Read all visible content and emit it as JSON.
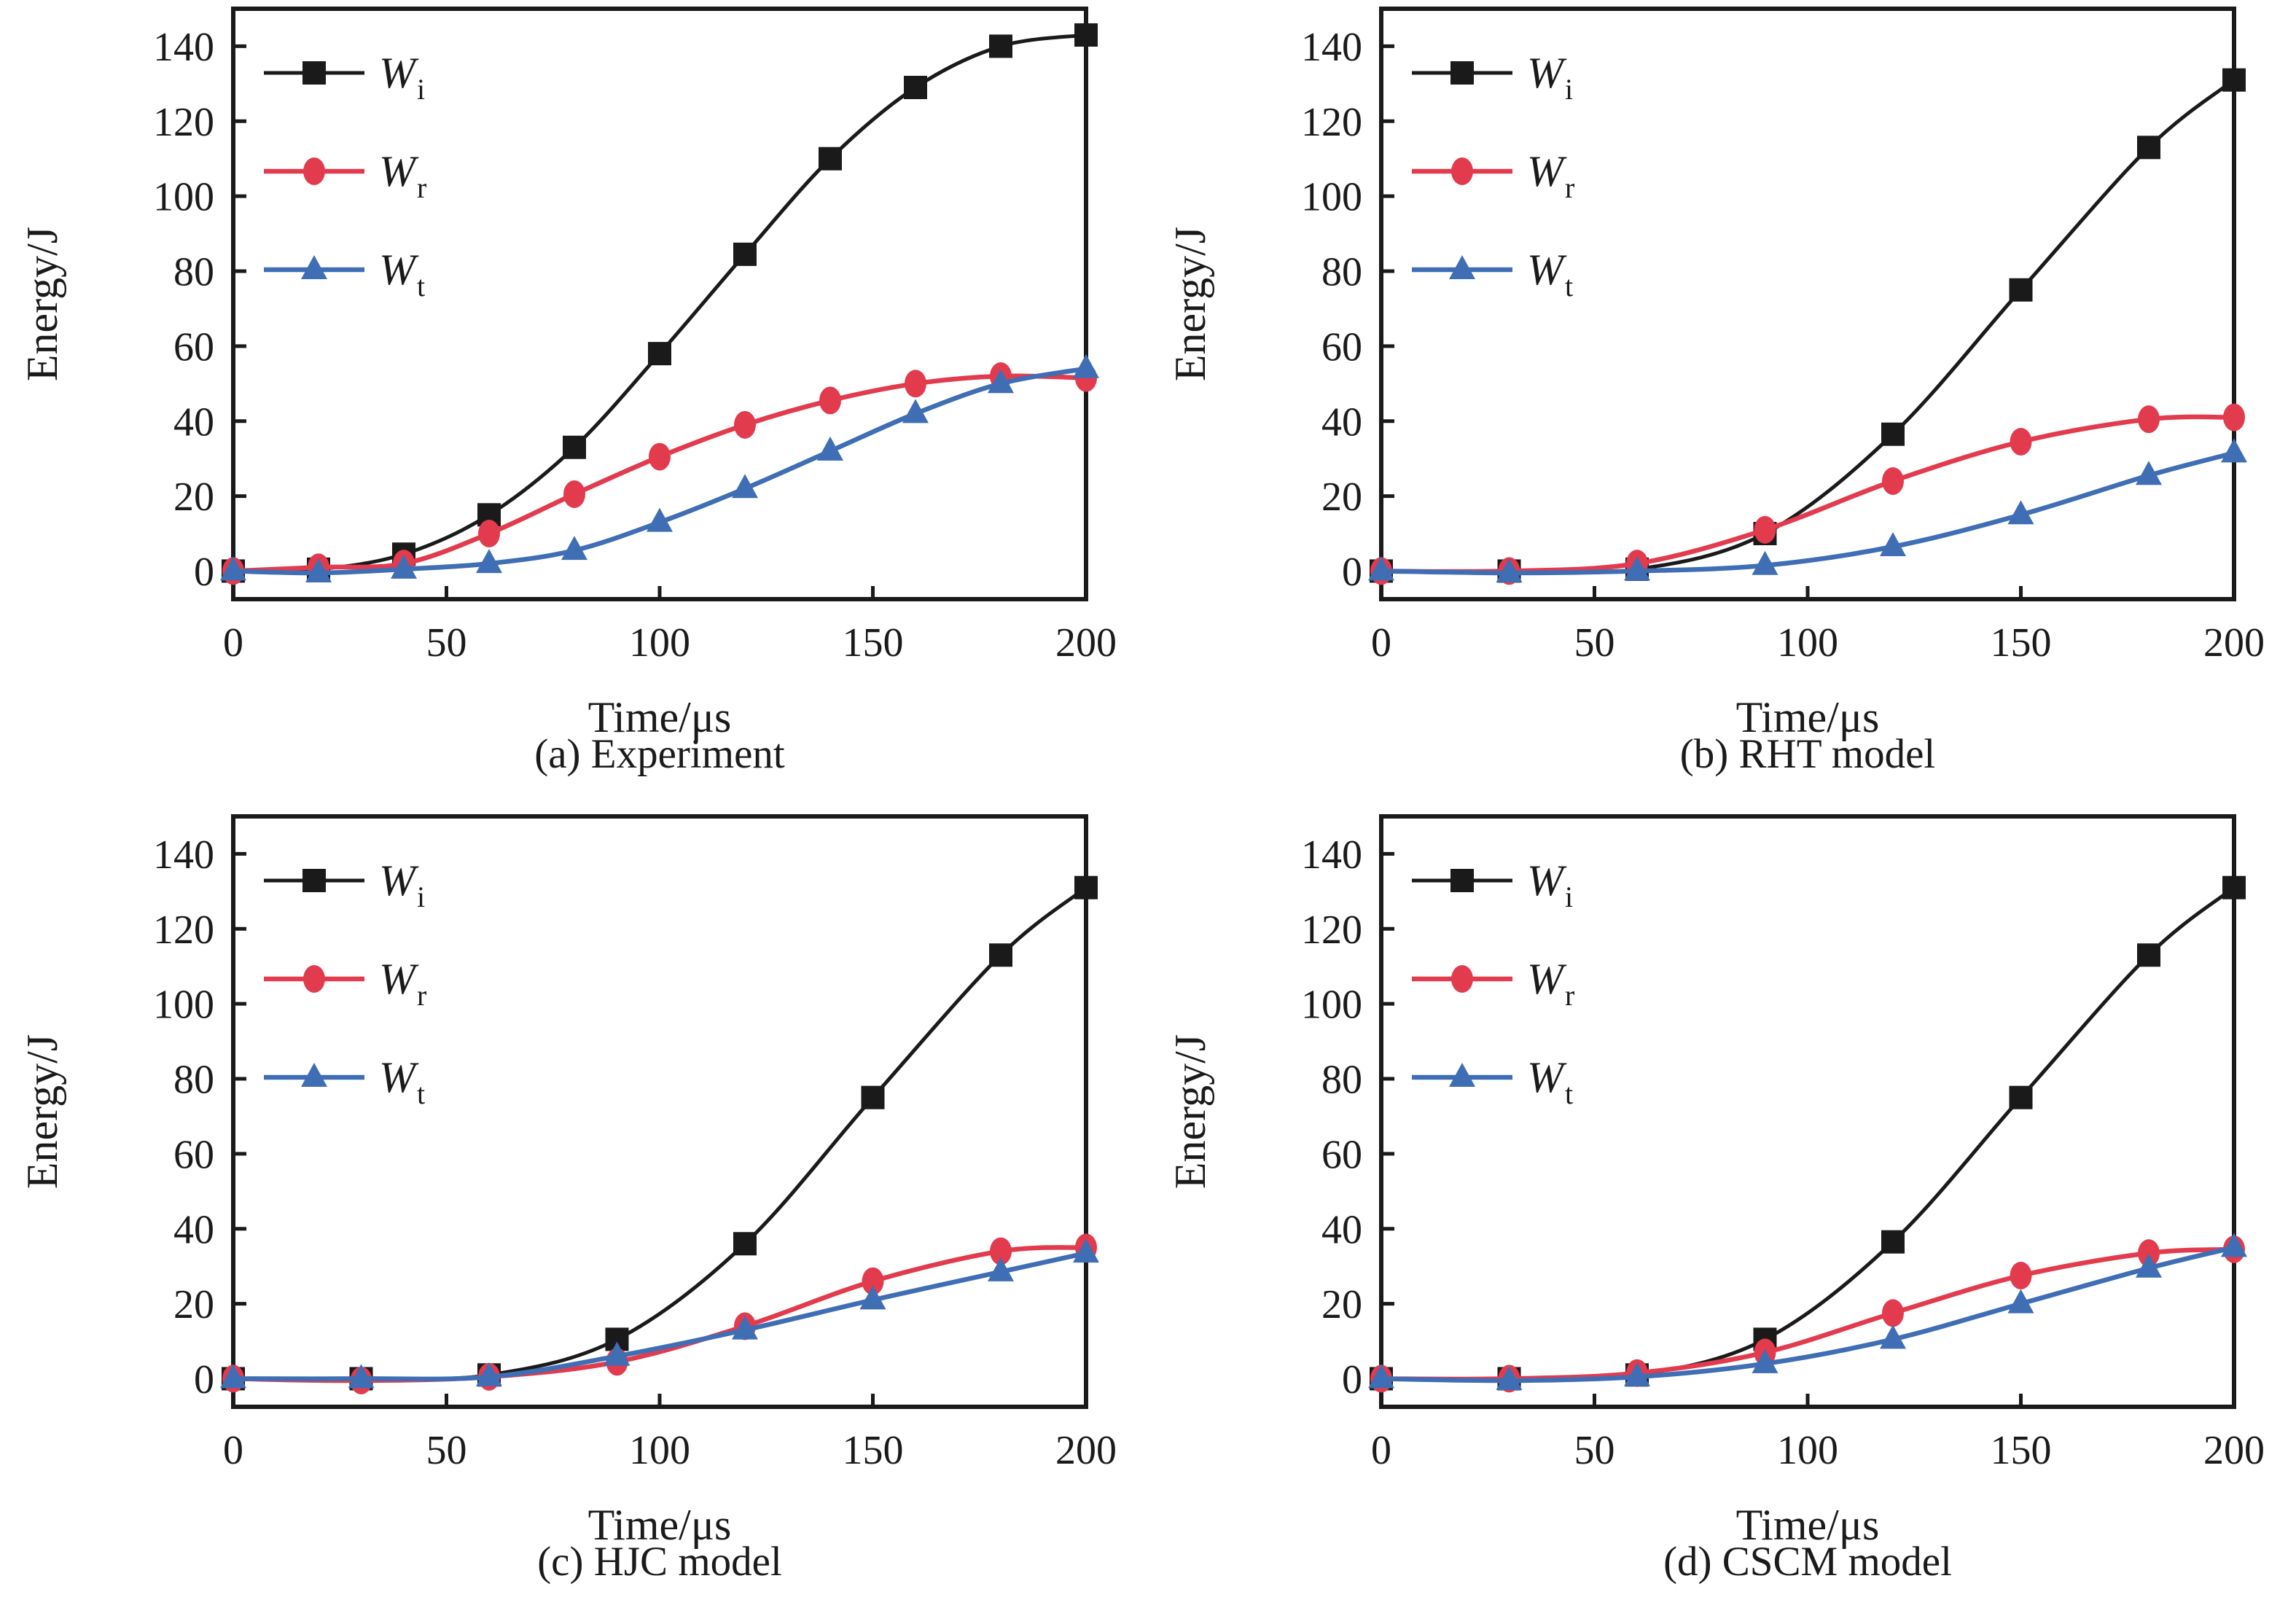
{
  "figure_background": "#ffffff",
  "text_color": "#1a1a1a",
  "chart_data": [
    {
      "type": "line",
      "caption": "(a) Experiment",
      "xlabel": "Time/μs",
      "ylabel": "Energy/J",
      "xticks": [
        0,
        50,
        100,
        150,
        200
      ],
      "yticks": [
        0,
        20,
        40,
        60,
        80,
        100,
        120,
        140
      ],
      "xlim": [
        0,
        200
      ],
      "ylim": [
        -7.5,
        150
      ],
      "grid": false,
      "legend_position": "top-left",
      "series": [
        {
          "name": "W",
          "sub": "i",
          "marker": "square",
          "color": "#1a1a1a",
          "x": [
            0,
            20,
            40,
            60,
            80,
            100,
            120,
            140,
            160,
            180,
            200
          ],
          "y": [
            0,
            0.5,
            4.5,
            15,
            33,
            58,
            84.5,
            110,
            129,
            140,
            143
          ]
        },
        {
          "name": "W",
          "sub": "r",
          "marker": "circle",
          "color": "#e23b4e",
          "x": [
            0,
            20,
            40,
            60,
            80,
            100,
            120,
            140,
            160,
            180,
            200
          ],
          "y": [
            0,
            1,
            2,
            10,
            20.5,
            30.5,
            39,
            45.5,
            50,
            52,
            51.5
          ]
        },
        {
          "name": "W",
          "sub": "t",
          "marker": "triangle",
          "color": "#3f6eb5",
          "x": [
            0,
            20,
            40,
            60,
            80,
            100,
            120,
            140,
            160,
            180,
            200
          ],
          "y": [
            0,
            -0.5,
            0.5,
            2,
            5.5,
            13,
            22,
            32,
            42,
            50,
            54
          ]
        }
      ]
    },
    {
      "type": "line",
      "caption": "(b) RHT model",
      "xlabel": "Time/μs",
      "ylabel": "Energy/J",
      "xticks": [
        0,
        50,
        100,
        150,
        200
      ],
      "yticks": [
        0,
        20,
        40,
        60,
        80,
        100,
        120,
        140
      ],
      "xlim": [
        0,
        200
      ],
      "ylim": [
        -7.5,
        150
      ],
      "grid": false,
      "legend_position": "top-left",
      "series": [
        {
          "name": "W",
          "sub": "i",
          "marker": "square",
          "color": "#1a1a1a",
          "x": [
            0,
            30,
            60,
            90,
            120,
            150,
            180,
            200
          ],
          "y": [
            0,
            0,
            0.5,
            10,
            36.5,
            75,
            113,
            131
          ]
        },
        {
          "name": "W",
          "sub": "r",
          "marker": "circle",
          "color": "#e23b4e",
          "x": [
            0,
            30,
            60,
            90,
            120,
            150,
            180,
            200
          ],
          "y": [
            0,
            0,
            2,
            11,
            24,
            34.5,
            40.5,
            41
          ]
        },
        {
          "name": "W",
          "sub": "t",
          "marker": "triangle",
          "color": "#3f6eb5",
          "x": [
            0,
            30,
            60,
            90,
            120,
            150,
            180,
            200
          ],
          "y": [
            0,
            -0.5,
            0,
            1.5,
            6.5,
            15,
            25.5,
            31.5
          ]
        }
      ]
    },
    {
      "type": "line",
      "caption": "(c) HJC model",
      "xlabel": "Time/μs",
      "ylabel": "Energy/J",
      "xticks": [
        0,
        50,
        100,
        150,
        200
      ],
      "yticks": [
        0,
        20,
        40,
        60,
        80,
        100,
        120,
        140
      ],
      "xlim": [
        0,
        200
      ],
      "ylim": [
        -7.5,
        150
      ],
      "grid": false,
      "legend_position": "top-left",
      "series": [
        {
          "name": "W",
          "sub": "i",
          "marker": "square",
          "color": "#1a1a1a",
          "x": [
            0,
            30,
            60,
            90,
            120,
            150,
            180,
            200
          ],
          "y": [
            0,
            0,
            1,
            10.5,
            36,
            75,
            113,
            131
          ]
        },
        {
          "name": "W",
          "sub": "r",
          "marker": "circle",
          "color": "#e23b4e",
          "x": [
            0,
            30,
            60,
            90,
            120,
            150,
            180,
            200
          ],
          "y": [
            0,
            -0.5,
            0.5,
            4.5,
            14,
            26,
            34,
            35
          ]
        },
        {
          "name": "W",
          "sub": "t",
          "marker": "triangle",
          "color": "#3f6eb5",
          "x": [
            0,
            30,
            60,
            90,
            120,
            150,
            180,
            200
          ],
          "y": [
            0,
            0,
            0.5,
            6,
            13,
            21,
            28.5,
            33.5
          ]
        }
      ]
    },
    {
      "type": "line",
      "caption": "(d) CSCM model",
      "xlabel": "Time/μs",
      "ylabel": "Energy/J",
      "xticks": [
        0,
        50,
        100,
        150,
        200
      ],
      "yticks": [
        0,
        20,
        40,
        60,
        80,
        100,
        120,
        140
      ],
      "xlim": [
        0,
        200
      ],
      "ylim": [
        -7.5,
        150
      ],
      "grid": false,
      "legend_position": "top-left",
      "series": [
        {
          "name": "W",
          "sub": "i",
          "marker": "square",
          "color": "#1a1a1a",
          "x": [
            0,
            30,
            60,
            90,
            120,
            150,
            180,
            200
          ],
          "y": [
            0,
            0,
            1,
            10.5,
            36.5,
            75,
            113,
            131
          ]
        },
        {
          "name": "W",
          "sub": "r",
          "marker": "circle",
          "color": "#e23b4e",
          "x": [
            0,
            30,
            60,
            90,
            120,
            150,
            180,
            200
          ],
          "y": [
            0,
            0,
            1.5,
            7,
            17.5,
            27.5,
            33.5,
            34.5
          ]
        },
        {
          "name": "W",
          "sub": "t",
          "marker": "triangle",
          "color": "#3f6eb5",
          "x": [
            0,
            30,
            60,
            90,
            120,
            150,
            180,
            200
          ],
          "y": [
            0,
            -0.5,
            0.5,
            4,
            10.5,
            20,
            29.5,
            35
          ]
        }
      ]
    }
  ]
}
